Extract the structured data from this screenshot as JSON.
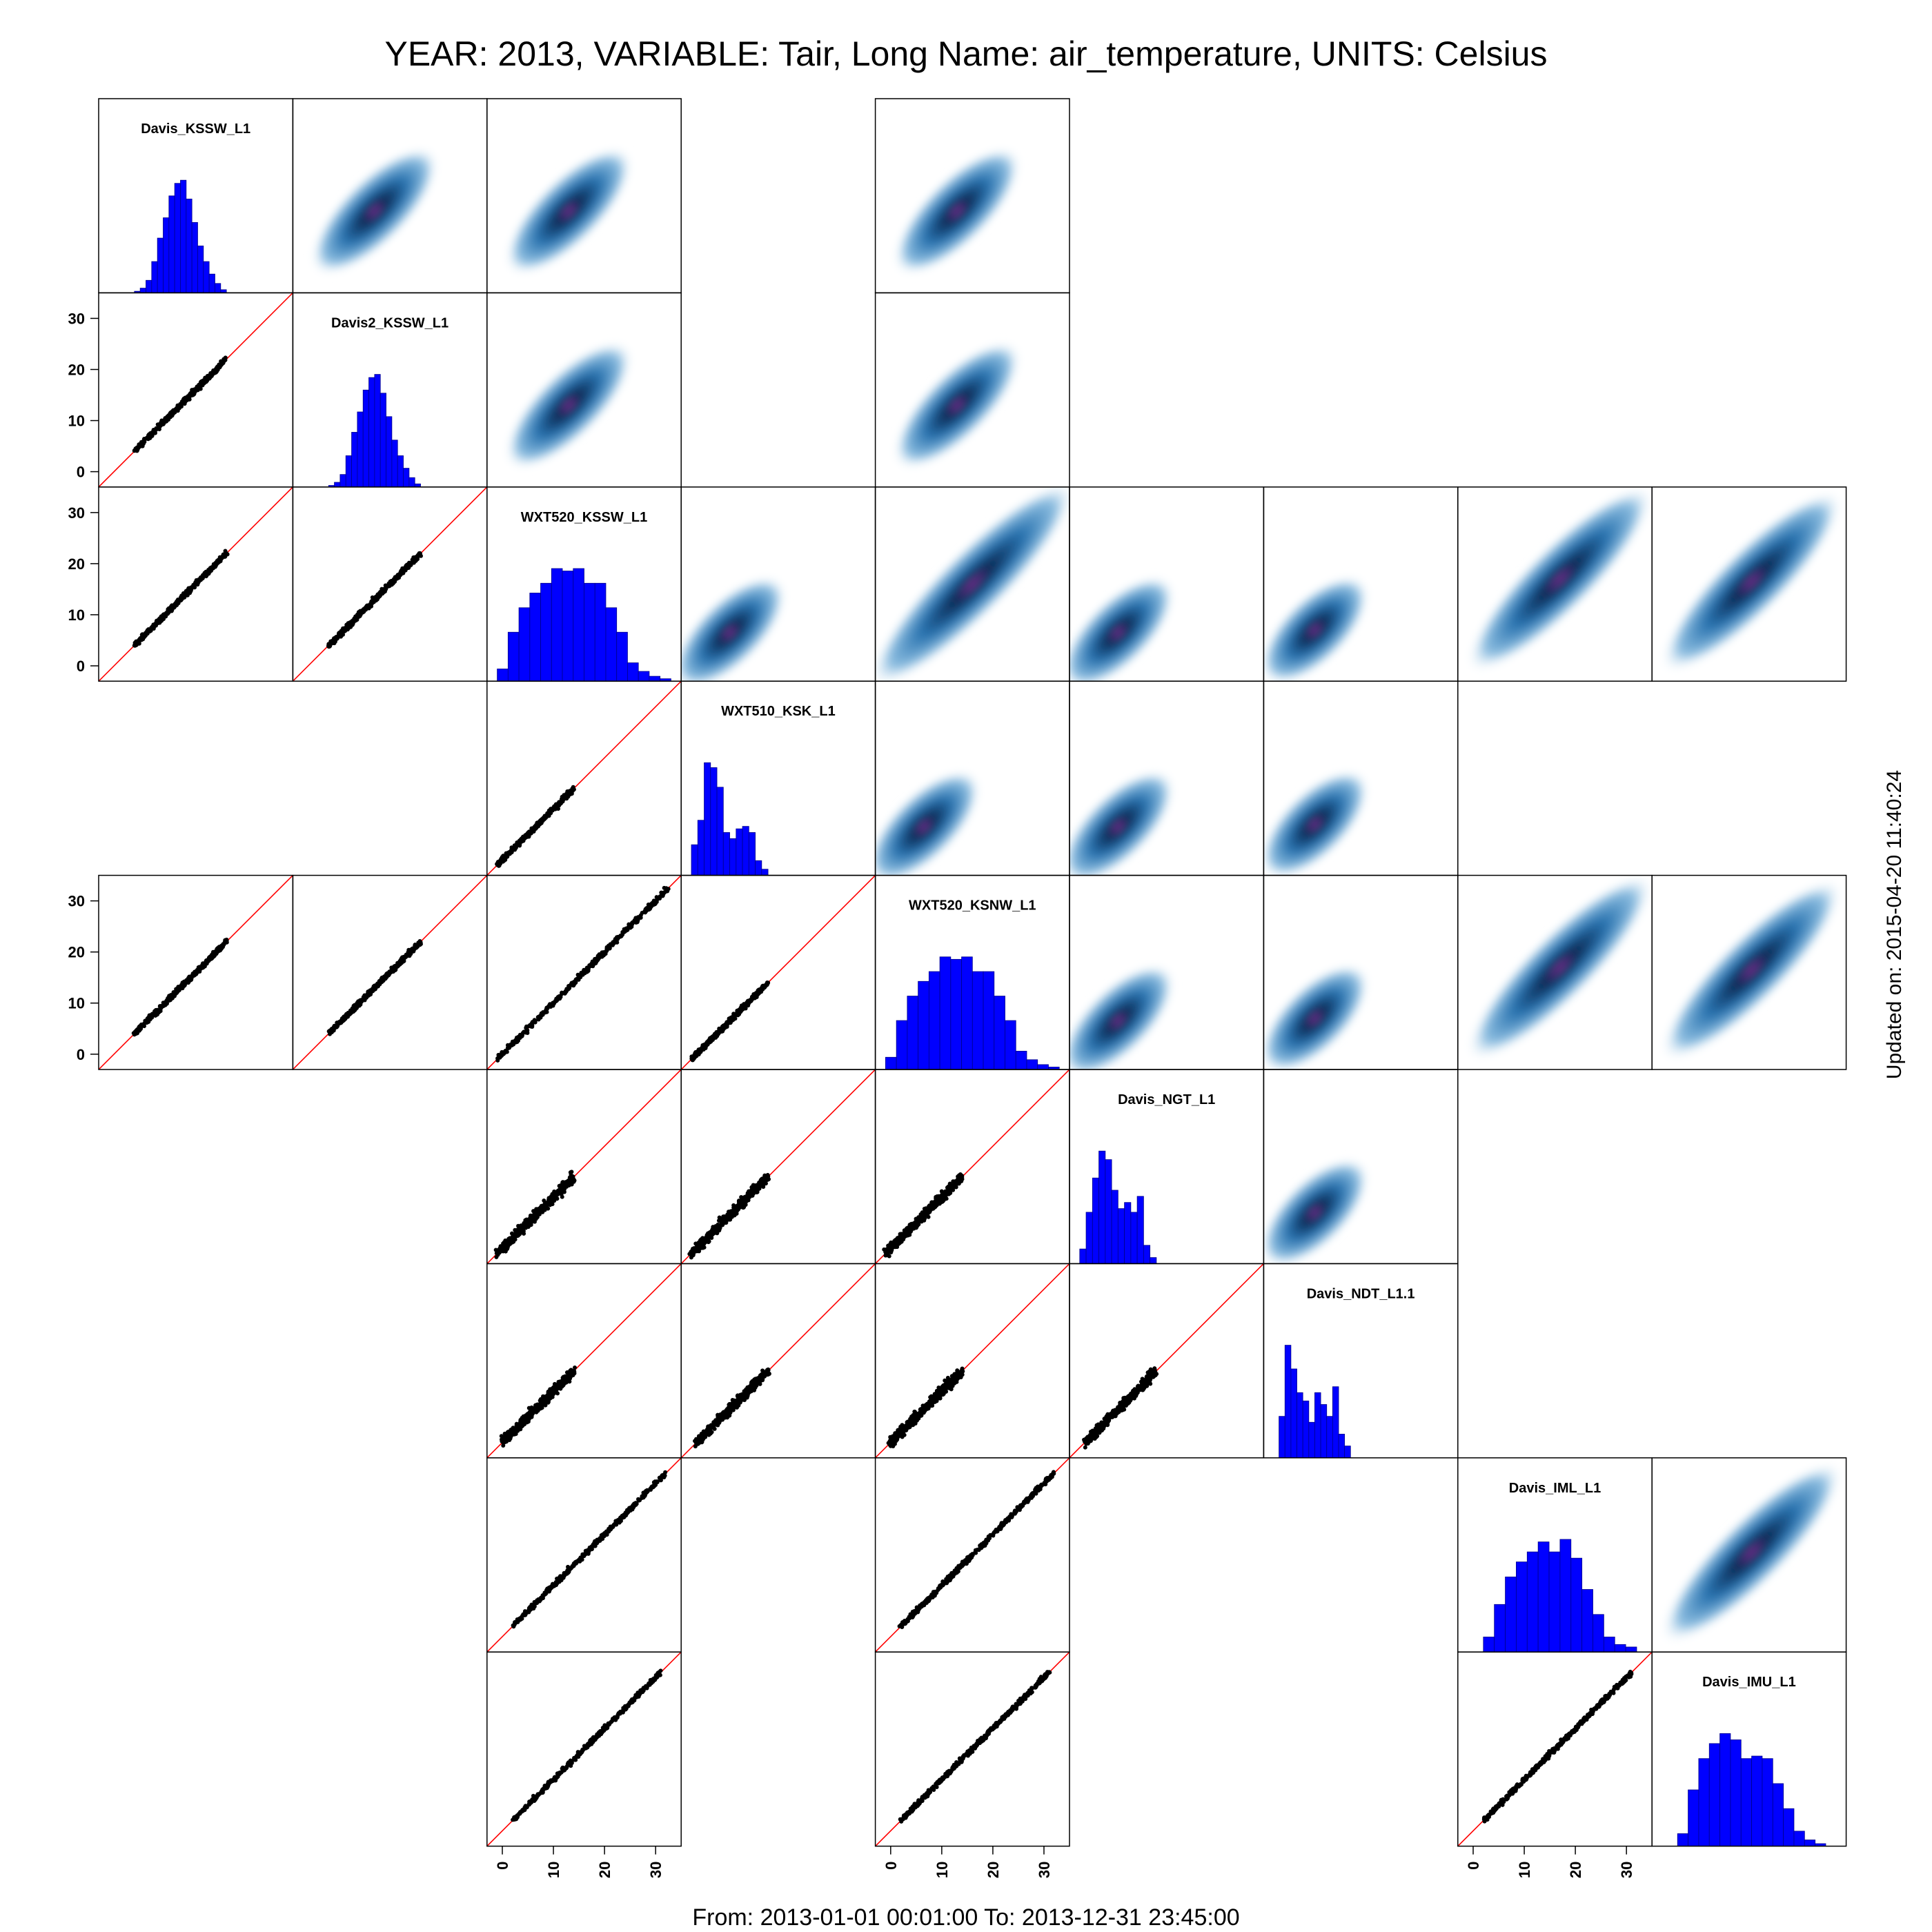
{
  "title": "YEAR: 2013, VARIABLE: Tair, Long Name: air_temperature, UNITS: Celsius",
  "footer": "From: 2013-01-01 00:01:00 To: 2013-12-31 23:45:00",
  "side_label": "Updated on: 2015-04-20 11:40:24",
  "colors": {
    "histogram": "#0000ff",
    "identity_line": "#ff0000",
    "points": "#000000",
    "density_low": "#cfe4f4",
    "density_mid": "#2a74b0",
    "density_high": "#0b2a55",
    "density_peak": "#8a2f9e"
  },
  "chart_data": {
    "type": "scatter-matrix",
    "variables": [
      "Davis_KSSW_L1",
      "Davis2_KSSW_L1",
      "WXT520_KSSW_L1",
      "WXT510_KSK_L1",
      "WXT520_KSNW_L1",
      "Davis_NGT_L1",
      "Davis_NDT_L1.1",
      "Davis_IML_L1",
      "Davis_IMU_L1"
    ],
    "axis_range": [
      -3,
      35
    ],
    "ticks": [
      0,
      10,
      20,
      30
    ],
    "tick_labels": [
      "0",
      "10",
      "20",
      "30"
    ],
    "variable_ranges": [
      [
        4,
        22
      ],
      [
        4,
        22
      ],
      [
        -1,
        33
      ],
      [
        -1,
        14
      ],
      [
        -1,
        33
      ],
      [
        -1,
        14
      ],
      [
        0,
        14
      ],
      [
        2,
        32
      ],
      [
        2,
        31
      ]
    ],
    "histograms": [
      [
        1,
        3,
        8,
        20,
        35,
        48,
        62,
        70,
        72,
        60,
        45,
        30,
        20,
        12,
        6,
        2
      ],
      [
        1,
        3,
        8,
        20,
        35,
        48,
        62,
        70,
        72,
        60,
        45,
        30,
        20,
        12,
        6,
        2
      ],
      [
        10,
        40,
        60,
        72,
        80,
        92,
        90,
        92,
        80,
        80,
        60,
        40,
        15,
        8,
        4,
        2
      ],
      [
        25,
        45,
        92,
        88,
        72,
        35,
        30,
        38,
        40,
        35,
        12,
        5
      ],
      [
        10,
        40,
        60,
        72,
        80,
        92,
        90,
        92,
        80,
        80,
        60,
        40,
        15,
        8,
        4,
        2
      ],
      [
        12,
        42,
        70,
        92,
        85,
        60,
        45,
        50,
        42,
        55,
        15,
        5
      ],
      [
        35,
        95,
        75,
        55,
        48,
        30,
        55,
        45,
        35,
        60,
        20,
        10
      ],
      [
        12,
        38,
        60,
        72,
        80,
        88,
        80,
        90,
        75,
        50,
        30,
        12,
        6,
        4
      ],
      [
        10,
        45,
        70,
        82,
        90,
        85,
        70,
        72,
        70,
        50,
        30,
        12,
        5,
        2
      ]
    ],
    "lower_scatter_cells": [
      [
        1,
        0
      ],
      [
        2,
        0
      ],
      [
        2,
        1
      ],
      [
        3,
        2
      ],
      [
        4,
        0
      ],
      [
        4,
        1
      ],
      [
        4,
        2
      ],
      [
        4,
        3
      ],
      [
        5,
        2
      ],
      [
        5,
        3
      ],
      [
        5,
        4
      ],
      [
        6,
        2
      ],
      [
        6,
        3
      ],
      [
        6,
        4
      ],
      [
        6,
        5
      ],
      [
        7,
        2
      ],
      [
        7,
        4
      ],
      [
        8,
        2
      ],
      [
        8,
        4
      ],
      [
        8,
        7
      ]
    ],
    "upper_density_cells": [
      [
        0,
        1
      ],
      [
        0,
        2
      ],
      [
        0,
        4
      ],
      [
        1,
        2
      ],
      [
        1,
        4
      ],
      [
        2,
        3
      ],
      [
        2,
        4
      ],
      [
        2,
        5
      ],
      [
        2,
        6
      ],
      [
        2,
        7
      ],
      [
        2,
        8
      ],
      [
        3,
        4
      ],
      [
        3,
        5
      ],
      [
        3,
        6
      ],
      [
        4,
        5
      ],
      [
        4,
        6
      ],
      [
        4,
        7
      ],
      [
        4,
        8
      ],
      [
        5,
        6
      ],
      [
        7,
        8
      ]
    ],
    "left_axis_rows": [
      1,
      2,
      4
    ],
    "bottom_axis_cols": [
      2,
      4,
      7
    ],
    "identity_line": true,
    "grid": false
  }
}
